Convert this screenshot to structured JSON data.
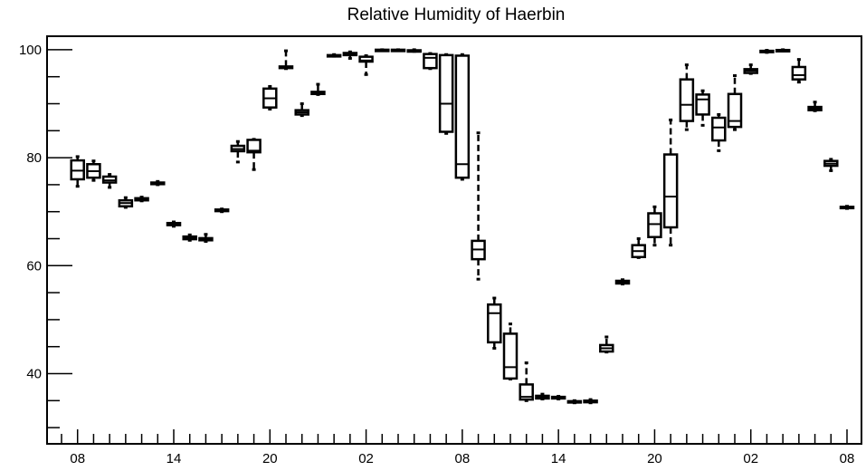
{
  "chart_data": {
    "type": "box",
    "title": "Relative Humidity of Haerbin",
    "xlabel": "",
    "ylabel": "",
    "ylim": [
      27,
      102.5
    ],
    "y_ticks": [
      40,
      60,
      80,
      100
    ],
    "x_tick_labels": [
      "08",
      "14",
      "20",
      "02",
      "08",
      "14",
      "20",
      "02",
      "08"
    ],
    "x_range": [
      0,
      49
    ],
    "grid": false,
    "colors": {
      "stroke": "#000000",
      "background": "#ffffff"
    },
    "boxes": [
      {
        "x": 1,
        "min": 74.7,
        "q1": 76.0,
        "median": 77.6,
        "q3": 79.5,
        "max": 80.2
      },
      {
        "x": 2,
        "min": 75.8,
        "q1": 76.3,
        "median": 77.5,
        "q3": 78.8,
        "max": 79.4
      },
      {
        "x": 3,
        "min": 74.5,
        "q1": 75.4,
        "median": 75.8,
        "q3": 76.5,
        "max": 76.9
      },
      {
        "x": 4,
        "min": 70.8,
        "q1": 71.0,
        "median": 71.6,
        "q3": 72.1,
        "max": 72.6
      },
      {
        "x": 5,
        "min": 72.0,
        "q1": 72.1,
        "median": 72.3,
        "q3": 72.5,
        "max": 72.7
      },
      {
        "x": 6,
        "min": 75.0,
        "q1": 75.1,
        "median": 75.2,
        "q3": 75.4,
        "max": 75.6
      },
      {
        "x": 7,
        "min": 67.3,
        "q1": 67.5,
        "median": 67.7,
        "q3": 67.9,
        "max": 68.1
      },
      {
        "x": 8,
        "min": 64.7,
        "q1": 64.9,
        "median": 65.1,
        "q3": 65.4,
        "max": 65.7
      },
      {
        "x": 9,
        "min": 64.5,
        "q1": 64.7,
        "median": 64.9,
        "q3": 65.1,
        "max": 65.8
      },
      {
        "x": 10,
        "min": 70.0,
        "q1": 70.1,
        "median": 70.2,
        "q3": 70.4,
        "max": 70.5
      },
      {
        "x": 11,
        "min": 79.2,
        "q1": 81.2,
        "median": 81.6,
        "q3": 82.2,
        "max": 83.0
      },
      {
        "x": 12,
        "min": 77.8,
        "q1": 81.0,
        "median": 81.3,
        "q3": 83.3,
        "max": 83.4
      },
      {
        "x": 13,
        "min": 89.0,
        "q1": 89.3,
        "median": 91.0,
        "q3": 92.8,
        "max": 93.2
      },
      {
        "x": 14,
        "min": 96.5,
        "q1": 96.6,
        "median": 96.8,
        "q3": 96.9,
        "max": 99.8
      },
      {
        "x": 15,
        "min": 87.8,
        "q1": 88.0,
        "median": 88.4,
        "q3": 88.8,
        "max": 90.0
      },
      {
        "x": 16,
        "min": 91.7,
        "q1": 91.8,
        "median": 92.0,
        "q3": 92.2,
        "max": 93.6
      },
      {
        "x": 17,
        "min": 98.8,
        "q1": 98.8,
        "median": 98.9,
        "q3": 99.0,
        "max": 99.1
      },
      {
        "x": 18,
        "min": 98.4,
        "q1": 99.0,
        "median": 99.2,
        "q3": 99.4,
        "max": 99.6
      },
      {
        "x": 19,
        "min": 95.4,
        "q1": 97.8,
        "median": 98.0,
        "q3": 98.7,
        "max": 98.9
      },
      {
        "x": 20,
        "min": 99.9,
        "q1": 99.9,
        "median": 99.95,
        "q3": 100.0,
        "max": 100.0
      },
      {
        "x": 21,
        "min": 99.9,
        "q1": 99.9,
        "median": 99.95,
        "q3": 100.0,
        "max": 100.0
      },
      {
        "x": 22,
        "min": 99.7,
        "q1": 99.75,
        "median": 99.8,
        "q3": 99.9,
        "max": 100.0
      },
      {
        "x": 23,
        "min": 96.5,
        "q1": 96.6,
        "median": 98.5,
        "q3": 99.2,
        "max": 99.3
      },
      {
        "x": 24,
        "min": 84.5,
        "q1": 84.8,
        "median": 90.0,
        "q3": 99.0,
        "max": 99.1
      },
      {
        "x": 25,
        "min": 76.0,
        "q1": 76.3,
        "median": 78.8,
        "q3": 98.9,
        "max": 99.1
      },
      {
        "x": 26,
        "min": 57.5,
        "q1": 61.2,
        "median": 63.0,
        "q3": 64.6,
        "max": 84.6
      },
      {
        "x": 27,
        "min": 44.7,
        "q1": 45.8,
        "median": 51.2,
        "q3": 52.8,
        "max": 54.0
      },
      {
        "x": 28,
        "min": 39.0,
        "q1": 39.1,
        "median": 41.2,
        "q3": 47.4,
        "max": 49.2
      },
      {
        "x": 29,
        "min": 35.0,
        "q1": 35.2,
        "median": 35.7,
        "q3": 38.0,
        "max": 42.0
      },
      {
        "x": 30,
        "min": 35.3,
        "q1": 35.4,
        "median": 35.6,
        "q3": 35.9,
        "max": 36.2
      },
      {
        "x": 31,
        "min": 35.3,
        "q1": 35.4,
        "median": 35.5,
        "q3": 35.7,
        "max": 35.8
      },
      {
        "x": 32,
        "min": 34.6,
        "q1": 34.7,
        "median": 34.8,
        "q3": 34.9,
        "max": 35.0
      },
      {
        "x": 33,
        "min": 34.6,
        "q1": 34.7,
        "median": 34.8,
        "q3": 35.0,
        "max": 35.2
      },
      {
        "x": 34,
        "min": 44.0,
        "q1": 44.1,
        "median": 44.7,
        "q3": 45.3,
        "max": 46.8
      },
      {
        "x": 35,
        "min": 56.6,
        "q1": 56.7,
        "median": 56.9,
        "q3": 57.2,
        "max": 57.4
      },
      {
        "x": 36,
        "min": 61.5,
        "q1": 61.6,
        "median": 62.7,
        "q3": 63.8,
        "max": 65.0
      },
      {
        "x": 37,
        "min": 63.8,
        "q1": 65.3,
        "median": 67.7,
        "q3": 69.7,
        "max": 70.9
      },
      {
        "x": 38,
        "min": 63.8,
        "q1": 67.1,
        "median": 72.8,
        "q3": 80.6,
        "max": 87.0
      },
      {
        "x": 39,
        "min": 85.2,
        "q1": 86.8,
        "median": 89.8,
        "q3": 94.5,
        "max": 97.2
      },
      {
        "x": 40,
        "min": 86.0,
        "q1": 88.0,
        "median": 90.8,
        "q3": 91.7,
        "max": 92.4
      },
      {
        "x": 41,
        "min": 81.3,
        "q1": 83.2,
        "median": 85.6,
        "q3": 87.4,
        "max": 88.0
      },
      {
        "x": 42,
        "min": 85.2,
        "q1": 85.7,
        "median": 86.8,
        "q3": 91.8,
        "max": 95.2
      },
      {
        "x": 43,
        "min": 95.6,
        "q1": 95.7,
        "median": 96.1,
        "q3": 96.4,
        "max": 97.2
      },
      {
        "x": 44,
        "min": 99.5,
        "q1": 99.6,
        "median": 99.7,
        "q3": 99.8,
        "max": 99.9
      },
      {
        "x": 45,
        "min": 99.8,
        "q1": 99.85,
        "median": 99.9,
        "q3": 99.95,
        "max": 100.0
      },
      {
        "x": 46,
        "min": 94.0,
        "q1": 94.5,
        "median": 95.3,
        "q3": 96.8,
        "max": 98.2
      },
      {
        "x": 47,
        "min": 88.7,
        "q1": 88.8,
        "median": 89.1,
        "q3": 89.4,
        "max": 90.3
      },
      {
        "x": 48,
        "min": 77.6,
        "q1": 78.5,
        "median": 78.9,
        "q3": 79.4,
        "max": 79.7
      },
      {
        "x": 49,
        "min": 70.6,
        "q1": 70.7,
        "median": 70.8,
        "q3": 70.9,
        "max": 71.0
      }
    ]
  }
}
